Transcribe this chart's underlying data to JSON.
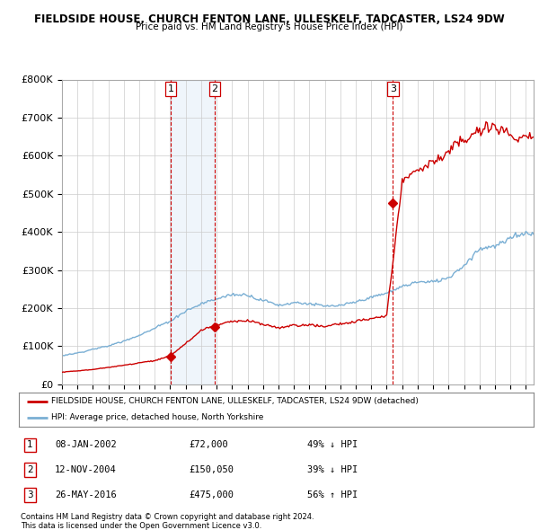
{
  "title1": "FIELDSIDE HOUSE, CHURCH FENTON LANE, ULLESKELF, TADCASTER, LS24 9DW",
  "title2": "Price paid vs. HM Land Registry's House Price Index (HPI)",
  "legend_line1": "FIELDSIDE HOUSE, CHURCH FENTON LANE, ULLESKELF, TADCASTER, LS24 9DW (detached)",
  "legend_line2": "HPI: Average price, detached house, North Yorkshire",
  "footer1": "Contains HM Land Registry data © Crown copyright and database right 2024.",
  "footer2": "This data is licensed under the Open Government Licence v3.0.",
  "sales": [
    {
      "num": 1,
      "date": "08-JAN-2002",
      "price": 72000,
      "year": 2002.03
    },
    {
      "num": 2,
      "date": "12-NOV-2004",
      "price": 150050,
      "year": 2004.87
    },
    {
      "num": 3,
      "date": "26-MAY-2016",
      "price": 475000,
      "year": 2016.4
    }
  ],
  "sale_labels": [
    {
      "num": 1,
      "date": "08-JAN-2002",
      "price": "£72,000",
      "hpi": "49% ↓ HPI"
    },
    {
      "num": 2,
      "date": "12-NOV-2004",
      "price": "£150,050",
      "hpi": "39% ↓ HPI"
    },
    {
      "num": 3,
      "date": "26-MAY-2016",
      "price": "£475,000",
      "hpi": "56% ↑ HPI"
    }
  ],
  "red_color": "#cc0000",
  "blue_color": "#7aafd4",
  "shade_color": "#ddeeff",
  "dashed_color": "#cc0000",
  "ylim": [
    0,
    800000
  ],
  "xlim": [
    1995.0,
    2025.5
  ]
}
